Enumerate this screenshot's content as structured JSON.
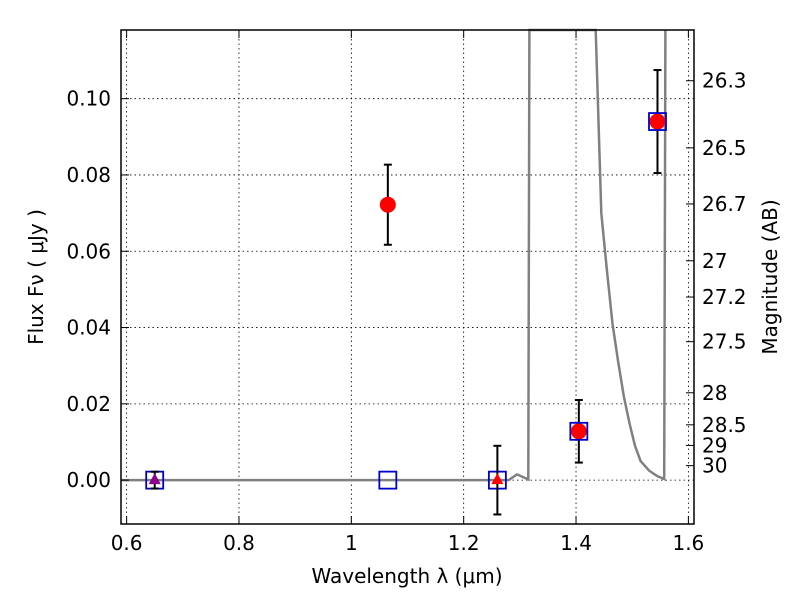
{
  "chart_data": {
    "type": "scatter",
    "xlabel": "Wavelength  λ (μm)",
    "ylabel": "Flux  Fν  ( μJy )",
    "y2label": "Magnitude (AB)",
    "xlim": [
      0.59,
      1.61
    ],
    "ylim": [
      -0.0115,
      0.118
    ],
    "x_ticks": [
      0.6,
      0.8,
      1.0,
      1.2,
      1.4,
      1.6
    ],
    "x_tick_labels": [
      "0.6",
      "0.8",
      "1",
      "1.2",
      "1.4",
      "1.6"
    ],
    "y_ticks": [
      0.0,
      0.02,
      0.04,
      0.06,
      0.08,
      0.1
    ],
    "y_tick_labels": [
      "0.00",
      "0.02",
      "0.04",
      "0.06",
      "0.08",
      "0.10"
    ],
    "y2_ticks": [
      {
        "flux": 0.1047,
        "label": "26.3"
      },
      {
        "flux": 0.0871,
        "label": "26.5"
      },
      {
        "flux": 0.0724,
        "label": "26.7"
      },
      {
        "flux": 0.0575,
        "label": "27"
      },
      {
        "flux": 0.048,
        "label": "27.2"
      },
      {
        "flux": 0.0363,
        "label": "27.5"
      },
      {
        "flux": 0.0229,
        "label": "28"
      },
      {
        "flux": 0.0145,
        "label": "28.5"
      },
      {
        "flux": 0.0091,
        "label": "29"
      },
      {
        "flux": 0.0038,
        "label": "30"
      }
    ],
    "grid": true,
    "series": [
      {
        "marker": "circle",
        "color": "#ff0000",
        "points": [
          {
            "x": 1.065,
            "y": 0.0722,
            "err": 0.0105
          },
          {
            "x": 1.405,
            "y": 0.0128,
            "err": 0.0082
          },
          {
            "x": 1.545,
            "y": 0.094,
            "err": 0.0135
          }
        ]
      },
      {
        "marker": "square-open",
        "color": "#0000cc",
        "points": [
          {
            "x": 0.65,
            "y": 0.0
          },
          {
            "x": 1.065,
            "y": 0.0
          },
          {
            "x": 1.26,
            "y": 0.0
          },
          {
            "x": 1.405,
            "y": 0.0128
          },
          {
            "x": 1.545,
            "y": 0.094
          }
        ]
      },
      {
        "marker": "triangle",
        "color": "#8b008b",
        "points": [
          {
            "x": 0.65,
            "y": 0.0,
            "err": 0.0022
          }
        ]
      },
      {
        "marker": "triangle",
        "color": "#ff0000",
        "points": [
          {
            "x": 1.26,
            "y": 0.0,
            "err": 0.009
          }
        ]
      }
    ],
    "spectrum": {
      "color": "#808080",
      "points": [
        [
          0.59,
          0.0
        ],
        [
          1.25,
          0.0
        ],
        [
          1.28,
          0.0
        ],
        [
          1.295,
          0.0015
        ],
        [
          1.315,
          0.0002
        ],
        [
          1.317,
          0.118
        ],
        [
          1.435,
          0.118
        ],
        [
          1.445,
          0.07
        ],
        [
          1.455,
          0.055
        ],
        [
          1.465,
          0.041
        ],
        [
          1.475,
          0.031
        ],
        [
          1.485,
          0.022
        ],
        [
          1.495,
          0.015
        ],
        [
          1.505,
          0.009
        ],
        [
          1.515,
          0.005
        ],
        [
          1.53,
          0.0025
        ],
        [
          1.545,
          0.001
        ],
        [
          1.557,
          0.0003
        ],
        [
          1.559,
          0.118
        ]
      ]
    }
  }
}
